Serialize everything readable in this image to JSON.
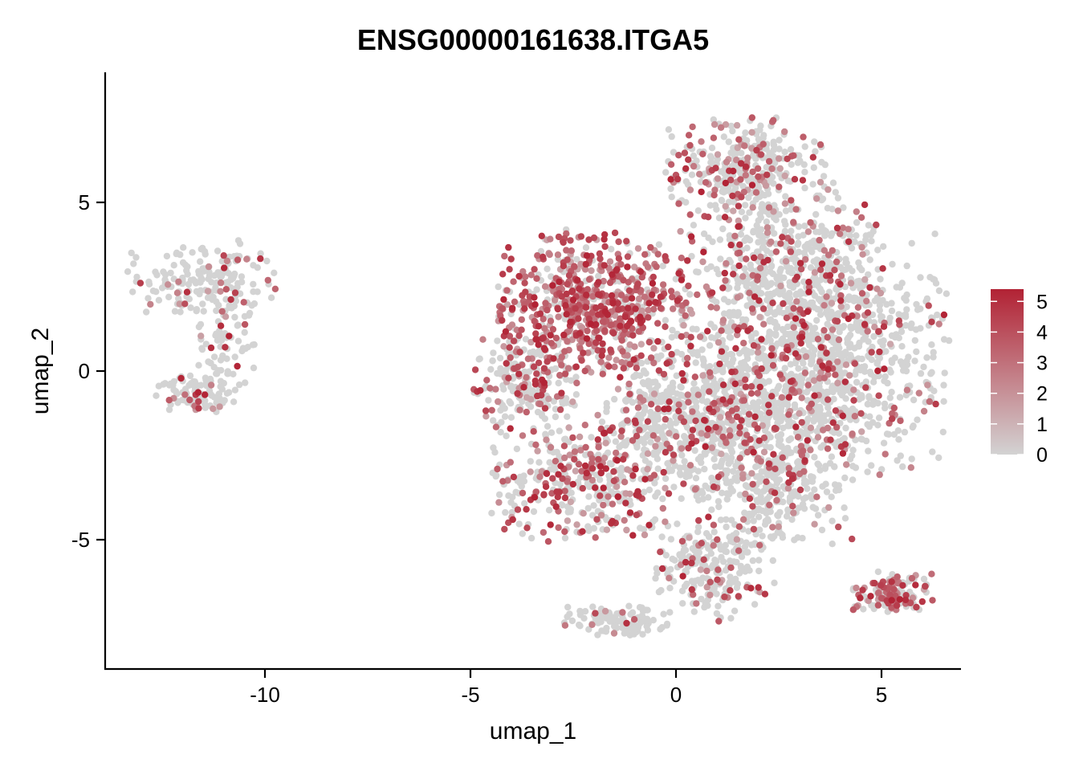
{
  "chart_data": {
    "type": "scatter",
    "title": "ENSG00000161638.ITGA5",
    "xlabel": "umap_1",
    "ylabel": "umap_2",
    "xlim": [
      -14,
      7
    ],
    "ylim": [
      -8.7,
      8.7
    ],
    "xticks": [
      -10,
      -5,
      0,
      5
    ],
    "xtick_labels": [
      "-10",
      "-5",
      "0",
      "5"
    ],
    "yticks": [
      -5,
      0,
      5
    ],
    "ytick_labels": [
      "-5",
      "0",
      "5"
    ],
    "grid": false,
    "legend": {
      "position": "right",
      "type": "colorbar",
      "ticks": [
        0,
        1,
        2,
        3,
        4,
        5
      ],
      "tick_labels": [
        "0",
        "1",
        "2",
        "3",
        "4",
        "5"
      ],
      "range": [
        0,
        5.4
      ],
      "low_color": "#d3d3d3",
      "high_color": "#b22234"
    },
    "clusters": [
      {
        "cx": -11.4,
        "cy": 2.8,
        "sx": 0.9,
        "sy": 0.5,
        "n": 160,
        "expr": 0.15
      },
      {
        "cx": -10.9,
        "cy": 1.0,
        "sx": 0.35,
        "sy": 1.0,
        "n": 90,
        "expr": 0.1
      },
      {
        "cx": -11.7,
        "cy": -0.6,
        "sx": 0.45,
        "sy": 0.28,
        "n": 90,
        "expr": 0.12
      },
      {
        "cx": -2.0,
        "cy": 2.0,
        "sx": 1.1,
        "sy": 1.0,
        "n": 700,
        "expr": 0.78
      },
      {
        "cx": -3.6,
        "cy": -0.4,
        "sx": 0.6,
        "sy": 0.7,
        "n": 220,
        "expr": 0.35
      },
      {
        "cx": -2.3,
        "cy": -3.3,
        "sx": 1.0,
        "sy": 0.8,
        "n": 360,
        "expr": 0.5
      },
      {
        "cx": -0.4,
        "cy": -1.5,
        "sx": 0.7,
        "sy": 0.9,
        "n": 200,
        "expr": 0.2
      },
      {
        "cx": 1.7,
        "cy": 6.0,
        "sx": 0.9,
        "sy": 0.7,
        "n": 320,
        "expr": 0.3
      },
      {
        "cx": 2.4,
        "cy": 3.0,
        "sx": 1.1,
        "sy": 1.2,
        "n": 450,
        "expr": 0.22
      },
      {
        "cx": 3.8,
        "cy": 0.6,
        "sx": 1.3,
        "sy": 1.7,
        "n": 900,
        "expr": 0.18
      },
      {
        "cx": 1.5,
        "cy": -1.2,
        "sx": 1.3,
        "sy": 1.2,
        "n": 700,
        "expr": 0.2
      },
      {
        "cx": 2.4,
        "cy": -3.5,
        "sx": 0.9,
        "sy": 0.8,
        "n": 250,
        "expr": 0.18
      },
      {
        "cx": 0.9,
        "cy": -5.9,
        "sx": 0.7,
        "sy": 0.7,
        "n": 230,
        "expr": 0.22
      },
      {
        "cx": 5.3,
        "cy": -6.6,
        "sx": 0.45,
        "sy": 0.3,
        "n": 130,
        "expr": 0.6
      },
      {
        "cx": -1.4,
        "cy": -7.4,
        "sx": 0.6,
        "sy": 0.2,
        "n": 110,
        "expr": 0.1
      }
    ]
  }
}
